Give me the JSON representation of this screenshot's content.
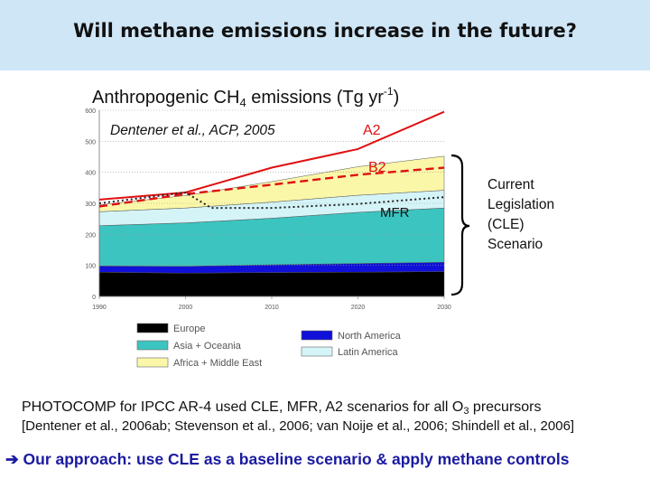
{
  "header": {
    "title": "Will methane emissions increase in the future?"
  },
  "chart_heading": {
    "prefix": "Anthropogenic CH",
    "sub": "4",
    "middle": " emissions (Tg yr",
    "sup": "-1",
    "suffix": ")"
  },
  "chart_data": {
    "type": "area",
    "citation": "Dentener et al., ACP, 2005",
    "x": [
      1990,
      2000,
      2010,
      2020,
      2030
    ],
    "ylim": [
      0,
      600
    ],
    "yticks": [
      0,
      100,
      200,
      300,
      400,
      500,
      600
    ],
    "xticks": [
      1990,
      2000,
      2010,
      2020,
      2030
    ],
    "stacked_series": [
      {
        "name": "Europe",
        "color": "#000000",
        "values": [
          78,
          75,
          77,
          78,
          80
        ]
      },
      {
        "name": "North America",
        "color": "#1010d8",
        "values": [
          20,
          22,
          25,
          28,
          30
        ]
      },
      {
        "name": "Asia + Oceania",
        "color": "#3cc4c0",
        "values": [
          130,
          140,
          150,
          165,
          175
        ]
      },
      {
        "name": "Latin America",
        "color": "#d4f4f8",
        "values": [
          45,
          48,
          52,
          55,
          57
        ]
      },
      {
        "name": "Africa + Middle East",
        "color": "#fbf7a8",
        "values": [
          22,
          40,
          66,
          92,
          110
        ]
      }
    ],
    "scenario_lines": [
      {
        "name": "A2",
        "color": "#e01010",
        "style": "solid",
        "x": [
          1990,
          2000,
          2010,
          2020,
          2030
        ],
        "values": [
          312,
          335,
          415,
          475,
          595
        ]
      },
      {
        "name": "B2",
        "color": "#e01010",
        "style": "dashed",
        "x": [
          1990,
          2000,
          2010,
          2020,
          2030
        ],
        "values": [
          290,
          330,
          360,
          392,
          415
        ]
      },
      {
        "name": "MFR",
        "color": "#222222",
        "style": "dotted",
        "x": [
          1990,
          2000,
          2003,
          2010,
          2020,
          2030
        ],
        "values": [
          300,
          335,
          285,
          285,
          298,
          320
        ]
      }
    ],
    "legend": [
      "Europe",
      "North America",
      "Asia + Oceania",
      "Latin America",
      "Africa + Middle East"
    ],
    "bracket_label": [
      "Current",
      "Legislation",
      "(CLE)",
      "Scenario"
    ]
  },
  "body": {
    "line1_prefix": "PHOTOCOMP for IPCC AR-4  used CLE, MFR, A2 scenarios for all O",
    "line1_sub": "3",
    "line1_suffix": " precursors",
    "line2": "[Dentener et al., 2006ab; Stevenson et al., 2006; van Noije et al., 2006; Shindell et al., 2006]",
    "line3_arrow": "➔",
    "line3": " Our approach: use CLE as a baseline scenario & apply methane controls"
  }
}
